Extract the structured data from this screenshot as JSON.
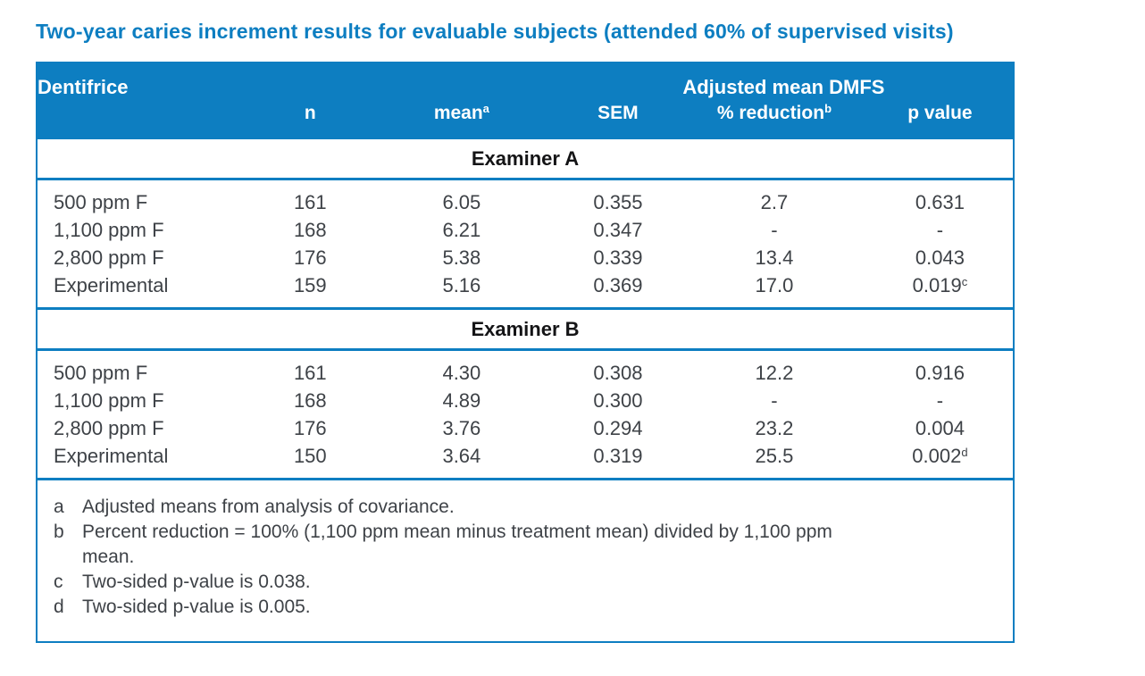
{
  "page": {
    "title": "Two-year caries increment results for evaluable subjects (attended 60% of supervised visits)"
  },
  "colors": {
    "brand_blue": "#0d7ec1",
    "header_text": "#ffffff",
    "body_text": "#3e4247",
    "band_text": "#141416"
  },
  "table": {
    "header": {
      "dentifrice": "Dentifrice",
      "group": "Adjusted mean DMFS",
      "n": "n",
      "mean": "mean",
      "mean_sup": "a",
      "sem": "SEM",
      "reduction": "% reduction",
      "reduction_sup": "b",
      "pvalue": "p value"
    },
    "sections": [
      {
        "label": "Examiner A",
        "rows": [
          {
            "dentifrice": "500 ppm F",
            "n": "161",
            "mean": "6.05",
            "sem": "0.355",
            "reduction": "2.7",
            "pvalue": "0.631",
            "pvalue_sup": ""
          },
          {
            "dentifrice": "1,100 ppm F",
            "n": "168",
            "mean": "6.21",
            "sem": "0.347",
            "reduction": "-",
            "pvalue": "-",
            "pvalue_sup": ""
          },
          {
            "dentifrice": "2,800 ppm F",
            "n": "176",
            "mean": "5.38",
            "sem": "0.339",
            "reduction": "13.4",
            "pvalue": "0.043",
            "pvalue_sup": ""
          },
          {
            "dentifrice": "Experimental",
            "n": "159",
            "mean": "5.16",
            "sem": "0.369",
            "reduction": "17.0",
            "pvalue": "0.019",
            "pvalue_sup": "c"
          }
        ]
      },
      {
        "label": "Examiner B",
        "rows": [
          {
            "dentifrice": "500 ppm F",
            "n": "161",
            "mean": "4.30",
            "sem": "0.308",
            "reduction": "12.2",
            "pvalue": "0.916",
            "pvalue_sup": ""
          },
          {
            "dentifrice": "1,100 ppm F",
            "n": "168",
            "mean": "4.89",
            "sem": "0.300",
            "reduction": "-",
            "pvalue": "-",
            "pvalue_sup": ""
          },
          {
            "dentifrice": "2,800 ppm F",
            "n": "176",
            "mean": "3.76",
            "sem": "0.294",
            "reduction": "23.2",
            "pvalue": "0.004",
            "pvalue_sup": ""
          },
          {
            "dentifrice": "Experimental",
            "n": "150",
            "mean": "3.64",
            "sem": "0.319",
            "reduction": "25.5",
            "pvalue": "0.002",
            "pvalue_sup": "d"
          }
        ]
      }
    ],
    "footnotes": [
      {
        "marker": "a",
        "text": "Adjusted means from analysis of covariance."
      },
      {
        "marker": "b",
        "text": "Percent reduction = 100% (1,100 ppm mean minus treatment mean) divided by 1,100 ppm mean."
      },
      {
        "marker": "c",
        "text": "Two-sided p-value is 0.038."
      },
      {
        "marker": "d",
        "text": "Two-sided p-value is 0.005."
      }
    ]
  },
  "chart_data": {
    "type": "table",
    "title": "Two-year caries increment results for evaluable subjects (attended 60% of supervised visits)",
    "column_group_header": "Adjusted mean DMFS",
    "columns": [
      "Dentifrice",
      "n",
      "mean",
      "SEM",
      "% reduction",
      "p value"
    ],
    "sections": [
      {
        "name": "Examiner A",
        "rows": [
          {
            "dentifrice": "500 ppm F",
            "n": 161,
            "mean": 6.05,
            "sem": 0.355,
            "pct_reduction": 2.7,
            "p_value": 0.631,
            "p_value_note": null
          },
          {
            "dentifrice": "1,100 ppm F",
            "n": 168,
            "mean": 6.21,
            "sem": 0.347,
            "pct_reduction": null,
            "p_value": null,
            "p_value_note": null
          },
          {
            "dentifrice": "2,800 ppm F",
            "n": 176,
            "mean": 5.38,
            "sem": 0.339,
            "pct_reduction": 13.4,
            "p_value": 0.043,
            "p_value_note": null
          },
          {
            "dentifrice": "Experimental",
            "n": 159,
            "mean": 5.16,
            "sem": 0.369,
            "pct_reduction": 17.0,
            "p_value": 0.019,
            "p_value_note": "c"
          }
        ]
      },
      {
        "name": "Examiner B",
        "rows": [
          {
            "dentifrice": "500 ppm F",
            "n": 161,
            "mean": 4.3,
            "sem": 0.308,
            "pct_reduction": 12.2,
            "p_value": 0.916,
            "p_value_note": null
          },
          {
            "dentifrice": "1,100 ppm F",
            "n": 168,
            "mean": 4.89,
            "sem": 0.3,
            "pct_reduction": null,
            "p_value": null,
            "p_value_note": null
          },
          {
            "dentifrice": "2,800 ppm F",
            "n": 176,
            "mean": 3.76,
            "sem": 0.294,
            "pct_reduction": 23.2,
            "p_value": 0.004,
            "p_value_note": null
          },
          {
            "dentifrice": "Experimental",
            "n": 150,
            "mean": 3.64,
            "sem": 0.319,
            "pct_reduction": 25.5,
            "p_value": 0.002,
            "p_value_note": "d"
          }
        ]
      }
    ],
    "footnotes": [
      "a Adjusted means from analysis of covariance.",
      "b Percent reduction = 100% (1,100 ppm mean minus treatment mean) divided by 1,100 ppm mean.",
      "c Two-sided p-value is 0.038.",
      "d Two-sided p-value is 0.005."
    ]
  }
}
